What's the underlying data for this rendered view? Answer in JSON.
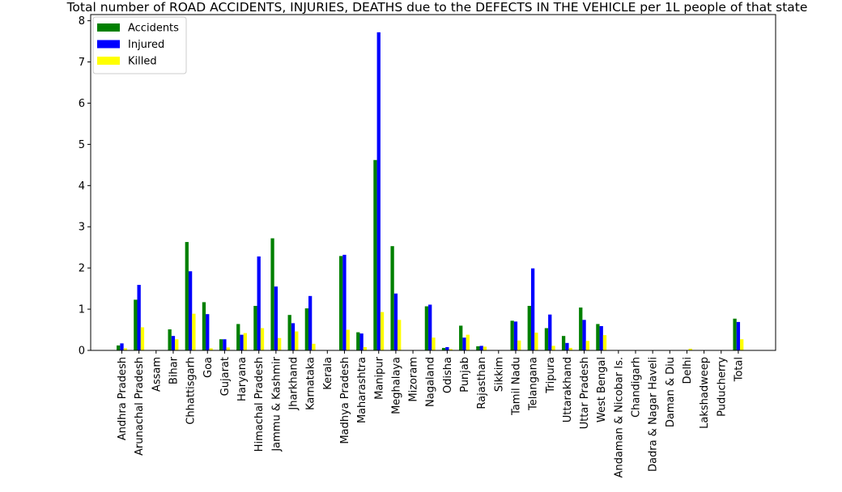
{
  "chart_data": {
    "type": "bar",
    "title": "Total number of ROAD ACCIDENTS, INJURIES, DEATHS due to the DEFECTS IN THE VEHICLE per 1L people of that state",
    "xlabel": "",
    "ylabel": "",
    "ylim": [
      0,
      8.15
    ],
    "yticks": [
      0,
      1,
      2,
      3,
      4,
      5,
      6,
      7,
      8
    ],
    "grid": false,
    "legend_position": "top-left",
    "categories": [
      "Andhra Pradesh",
      "Arunachal Pradesh",
      "Assam",
      "Bihar",
      "Chhattisgarh",
      "Goa",
      "Gujarat",
      "Haryana",
      "Himachal Pradesh",
      "Jammu & Kashmir",
      "Jharkhand",
      "Karnataka",
      "Kerala",
      "Madhya Pradesh",
      "Maharashtra",
      "Manipur",
      "Meghalaya",
      "Mizoram",
      "Nagaland",
      "Odisha",
      "Punjab",
      "Rajasthan",
      "Sikkim",
      "Tamil Nadu",
      "Telangana",
      "Tripura",
      "Uttarakhand",
      "Uttar Pradesh",
      "West Bengal",
      "Andaman & Nicobar Is.",
      "Chandigarh",
      "Dadra & Nagar Haveli",
      "Daman & Diu",
      "Delhi",
      "Lakshadweep",
      "Puducherry",
      "Total"
    ],
    "series": [
      {
        "name": "Accidents",
        "color": "#008000",
        "values": [
          0.12,
          1.23,
          0,
          0.51,
          2.63,
          1.17,
          0.27,
          0.64,
          1.08,
          2.72,
          0.86,
          1.02,
          0,
          2.29,
          0.44,
          4.62,
          2.53,
          0,
          1.07,
          0.06,
          0.6,
          0.1,
          0,
          0.72,
          1.08,
          0.54,
          0.35,
          1.04,
          0.64,
          0,
          0,
          0,
          0,
          0,
          0,
          0,
          0.77
        ]
      },
      {
        "name": "Injured",
        "color": "#0000ff",
        "values": [
          0.17,
          1.59,
          0,
          0.35,
          1.92,
          0.88,
          0.27,
          0.38,
          2.28,
          1.55,
          0.66,
          1.32,
          0,
          2.32,
          0.41,
          7.72,
          1.38,
          0,
          1.11,
          0.08,
          0.31,
          0.11,
          0,
          0.7,
          1.99,
          0.87,
          0.18,
          0.74,
          0.59,
          0,
          0,
          0,
          0,
          0,
          0,
          0,
          0.69
        ]
      },
      {
        "name": "Killed",
        "color": "#ffff00",
        "values": [
          0.05,
          0.56,
          0,
          0.27,
          0.89,
          0.05,
          0.07,
          0.42,
          0.54,
          0.3,
          0.46,
          0.16,
          0,
          0.5,
          0.08,
          0.93,
          0.74,
          0,
          0.31,
          0.03,
          0.38,
          0.09,
          0,
          0.24,
          0.43,
          0.11,
          0.06,
          0.23,
          0.37,
          0,
          0,
          0,
          0,
          0.04,
          0,
          0,
          0.27
        ]
      }
    ]
  }
}
